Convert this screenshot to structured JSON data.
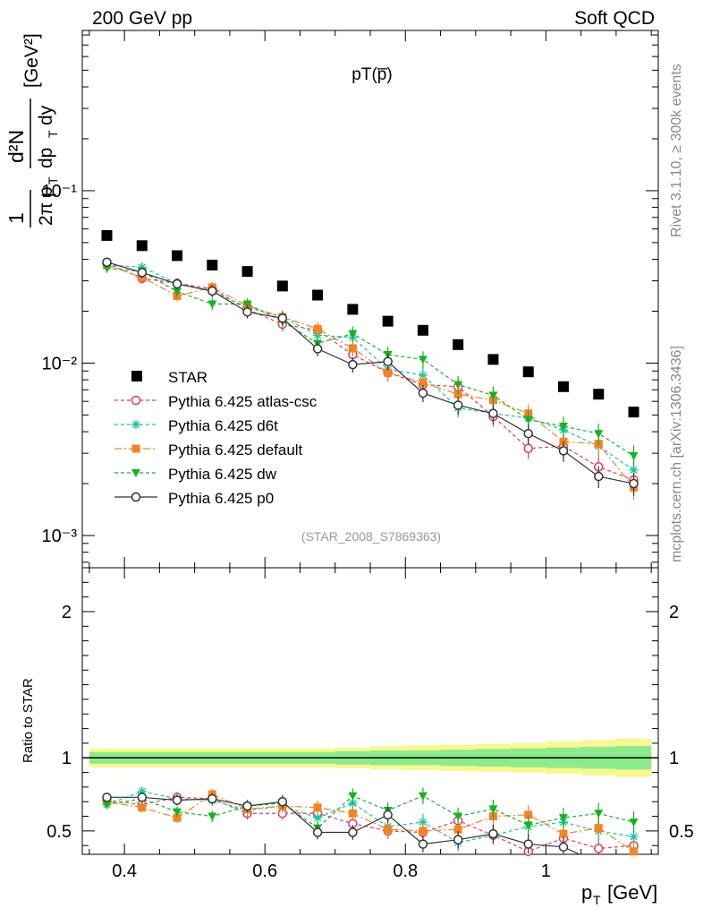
{
  "header": {
    "left": "200 GeV pp",
    "right": "Soft QCD"
  },
  "plot_title": "pT(p̅)",
  "analysis_tag": "(STAR_2008_S7869363)",
  "side_labels": {
    "rivet": "Rivet 3.1.10, ≥ 300k events",
    "mcplots": "mcplots.cern.ch [arXiv:1306.3436]"
  },
  "ylabel_parts": {
    "frac_num": "1",
    "frac_den": "2π p",
    "sub_T": "T",
    "dN": "d²N",
    "dp": "dp",
    "dy": "dy",
    "unit": "[GeV²]"
  },
  "ratio_ylabel": "Ratio to STAR",
  "xlabel_parts": {
    "p": "p",
    "sub_T": "T",
    "unit": "[GeV]"
  },
  "chart_data": {
    "type": "scatter",
    "x_axis": {
      "range": [
        0.34,
        1.16
      ],
      "ticks": [
        0.4,
        0.6,
        0.8,
        1
      ],
      "tick_labels": [
        "0.4",
        "0.6",
        "0.8",
        "1"
      ]
    },
    "main_y_axis": {
      "scale": "log",
      "range": [
        0.00065,
        0.85
      ],
      "tick_labels": [
        "10⁻³",
        "10⁻²",
        "10⁻¹"
      ]
    },
    "ratio_y_axis": {
      "range": [
        0.34,
        2.3
      ],
      "ticks": [
        0.5,
        1,
        2
      ],
      "tick_labels": [
        "0.5",
        "1",
        "2"
      ]
    },
    "x": [
      0.375,
      0.425,
      0.475,
      0.525,
      0.575,
      0.625,
      0.675,
      0.725,
      0.775,
      0.825,
      0.875,
      0.925,
      0.975,
      1.025,
      1.075,
      1.125
    ],
    "reference": {
      "name": "STAR",
      "values": [
        0.055,
        0.048,
        0.042,
        0.037,
        0.034,
        0.028,
        0.0248,
        0.0205,
        0.0175,
        0.0155,
        0.0128,
        0.0105,
        0.0089,
        0.0073,
        0.0066,
        0.0052
      ],
      "color": "#000000",
      "band_inner": [
        0.04,
        0.04,
        0.04,
        0.04,
        0.04,
        0.04,
        0.04,
        0.045,
        0.05,
        0.05,
        0.055,
        0.06,
        0.065,
        0.07,
        0.075,
        0.08
      ],
      "band_outer": [
        0.065,
        0.065,
        0.065,
        0.065,
        0.065,
        0.065,
        0.065,
        0.07,
        0.08,
        0.085,
        0.09,
        0.095,
        0.1,
        0.11,
        0.12,
        0.13
      ]
    },
    "series": [
      {
        "name": "Pythia 6.425 atlas-csc",
        "color": "#e8385e",
        "dash": "4,3",
        "marker": "open-circle",
        "values": [
          0.038,
          0.031,
          0.029,
          0.027,
          0.0205,
          0.0168,
          0.0155,
          0.0112,
          0.0088,
          0.0075,
          0.0073,
          0.0049,
          0.0032,
          0.0033,
          0.0025,
          0.0021
        ]
      },
      {
        "name": "Pythia 6.425 d6t",
        "color": "#14c8a0",
        "dash": "4,3",
        "marker": "asterisk",
        "values": [
          0.037,
          0.036,
          0.029,
          0.026,
          0.021,
          0.0185,
          0.0145,
          0.0141,
          0.0092,
          0.0085,
          0.0055,
          0.0051,
          0.0048,
          0.0041,
          0.0033,
          0.0024
        ]
      },
      {
        "name": "Pythia 6.425 default",
        "color": "#f5831f",
        "dash": "8,3,2,3",
        "marker": "filled-square",
        "values": [
          0.037,
          0.0315,
          0.0245,
          0.0275,
          0.0215,
          0.0185,
          0.0158,
          0.0122,
          0.0088,
          0.0077,
          0.0066,
          0.0061,
          0.0051,
          0.0035,
          0.0034,
          0.0019
        ]
      },
      {
        "name": "Pythia 6.425 dw",
        "color": "#14b41e",
        "dash": "4,3",
        "marker": "filled-triangle-down",
        "values": [
          0.0355,
          0.034,
          0.026,
          0.022,
          0.022,
          0.0175,
          0.013,
          0.0148,
          0.0112,
          0.0105,
          0.0075,
          0.0065,
          0.0047,
          0.0043,
          0.0039,
          0.0029
        ]
      },
      {
        "name": "Pythia 6.425 p0",
        "color": "#333333",
        "dash": "",
        "marker": "open-circle",
        "values": [
          0.0385,
          0.0335,
          0.0288,
          0.0262,
          0.0198,
          0.0182,
          0.0121,
          0.0098,
          0.0102,
          0.0067,
          0.0057,
          0.0051,
          0.0039,
          0.0031,
          0.0022,
          0.002
        ]
      }
    ],
    "ratios": [
      [
        0.71,
        0.68,
        0.73,
        0.72,
        0.62,
        0.62,
        0.62,
        0.55,
        0.5,
        0.49,
        0.57,
        0.47,
        0.36,
        0.45,
        0.38,
        0.4
      ],
      [
        0.68,
        0.77,
        0.72,
        0.71,
        0.64,
        0.67,
        0.59,
        0.69,
        0.53,
        0.56,
        0.42,
        0.47,
        0.53,
        0.56,
        0.5,
        0.46
      ],
      [
        0.7,
        0.66,
        0.59,
        0.75,
        0.65,
        0.67,
        0.66,
        0.62,
        0.51,
        0.5,
        0.51,
        0.6,
        0.61,
        0.48,
        0.52,
        0.36
      ],
      [
        0.68,
        0.72,
        0.63,
        0.6,
        0.67,
        0.69,
        0.52,
        0.74,
        0.64,
        0.74,
        0.6,
        0.65,
        0.54,
        0.59,
        0.62,
        0.56
      ],
      [
        0.73,
        0.73,
        0.71,
        0.72,
        0.67,
        0.7,
        0.49,
        0.49,
        0.61,
        0.41,
        0.44,
        0.48,
        0.41,
        0.39,
        0.28,
        0.3
      ]
    ]
  }
}
